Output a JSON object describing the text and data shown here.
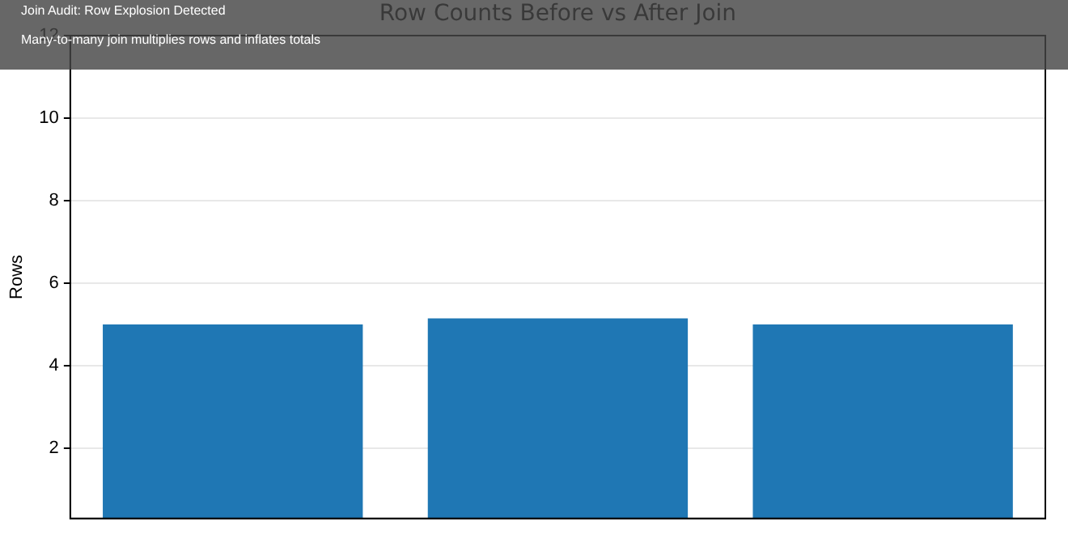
{
  "chart_data": {
    "type": "bar",
    "title": "Row Counts Before vs After Join",
    "annotations": [
      "Join Audit: Row Explosion Detected",
      "Many-to-many join multiplies rows and inflates totals"
    ],
    "ylabel": "Rows",
    "categories": [
      null,
      null,
      null
    ],
    "values": [
      5,
      5.15,
      5
    ],
    "color": "#1f77b4",
    "ylim": [
      0.3,
      12
    ],
    "yticks": [
      2,
      4,
      6,
      8,
      10,
      12
    ],
    "grid": "y"
  }
}
